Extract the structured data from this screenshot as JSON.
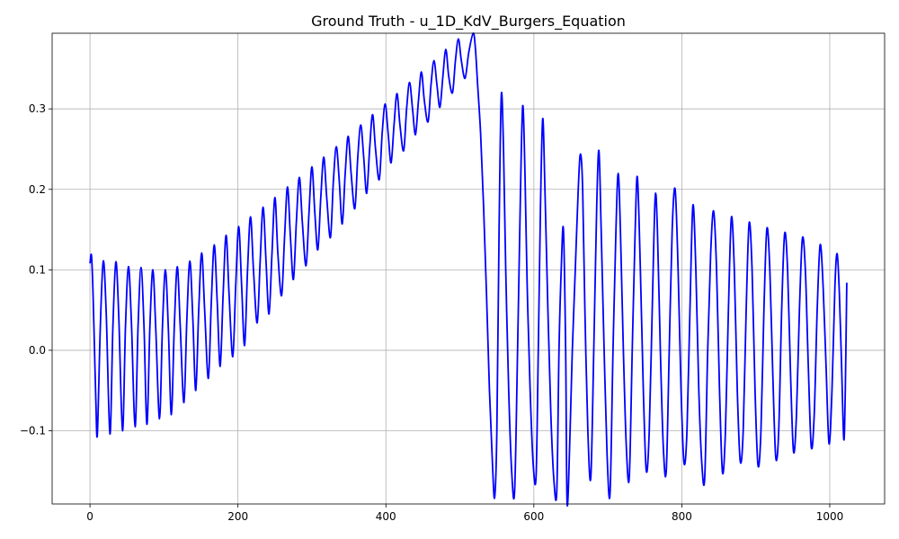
{
  "chart_data": {
    "type": "line",
    "title": "Ground Truth - u_1D_KdV_Burgers_Equation",
    "xlabel": "",
    "ylabel": "",
    "xlim": [
      -51.15,
      1074.15
    ],
    "ylim": [
      -0.191,
      0.394
    ],
    "grid": true,
    "xticks": [
      0,
      200,
      400,
      600,
      800,
      1000
    ],
    "yticks": [
      -0.1,
      0.0,
      0.1,
      0.2,
      0.3
    ],
    "xtick_labels": [
      "0",
      "200",
      "400",
      "600",
      "800",
      "1000"
    ],
    "ytick_labels": [
      "−0.1",
      "0.0",
      "0.1",
      "0.2",
      "0.3"
    ],
    "series": [
      {
        "name": "",
        "color": "#0000ff",
        "points": [
          [
            0,
            0.108
          ],
          [
            2,
            0.118
          ],
          [
            4,
            0.075
          ],
          [
            6,
            0.005
          ],
          [
            8,
            -0.065
          ],
          [
            10,
            -0.104
          ],
          [
            14,
            0.03
          ],
          [
            18,
            0.111
          ],
          [
            22,
            0.045
          ],
          [
            27,
            -0.104
          ],
          [
            31,
            0.03
          ],
          [
            35,
            0.11
          ],
          [
            39,
            0.04
          ],
          [
            44,
            -0.1
          ],
          [
            48,
            0.03
          ],
          [
            52,
            0.104
          ],
          [
            56,
            0.035
          ],
          [
            61,
            -0.095
          ],
          [
            65,
            0.03
          ],
          [
            69,
            0.103
          ],
          [
            73,
            0.03
          ],
          [
            77,
            -0.092
          ],
          [
            81,
            0.03
          ],
          [
            85,
            0.1
          ],
          [
            89,
            0.025
          ],
          [
            94,
            -0.085
          ],
          [
            98,
            0.03
          ],
          [
            102,
            0.1
          ],
          [
            106,
            0.025
          ],
          [
            110,
            -0.08
          ],
          [
            114,
            0.03
          ],
          [
            118,
            0.104
          ],
          [
            122,
            0.03
          ],
          [
            127,
            -0.065
          ],
          [
            131,
            0.04
          ],
          [
            135,
            0.111
          ],
          [
            139,
            0.04
          ],
          [
            143,
            -0.05
          ],
          [
            147,
            0.05
          ],
          [
            151,
            0.121
          ],
          [
            155,
            0.05
          ],
          [
            160,
            -0.035
          ],
          [
            164,
            0.06
          ],
          [
            168,
            0.131
          ],
          [
            172,
            0.06
          ],
          [
            176,
            -0.02
          ],
          [
            180,
            0.07
          ],
          [
            184,
            0.143
          ],
          [
            188,
            0.07
          ],
          [
            193,
            -0.008
          ],
          [
            197,
            0.08
          ],
          [
            201,
            0.154
          ],
          [
            205,
            0.08
          ],
          [
            209,
            0.006
          ],
          [
            213,
            0.1
          ],
          [
            217,
            0.166
          ],
          [
            221,
            0.1
          ],
          [
            226,
            0.034
          ],
          [
            230,
            0.11
          ],
          [
            234,
            0.178
          ],
          [
            238,
            0.11
          ],
          [
            242,
            0.045
          ],
          [
            246,
            0.12
          ],
          [
            250,
            0.19
          ],
          [
            254,
            0.12
          ],
          [
            259,
            0.068
          ],
          [
            263,
            0.14
          ],
          [
            267,
            0.203
          ],
          [
            271,
            0.14
          ],
          [
            275,
            0.088
          ],
          [
            279,
            0.16
          ],
          [
            283,
            0.215
          ],
          [
            287,
            0.16
          ],
          [
            292,
            0.105
          ],
          [
            296,
            0.17
          ],
          [
            300,
            0.228
          ],
          [
            304,
            0.17
          ],
          [
            308,
            0.125
          ],
          [
            312,
            0.19
          ],
          [
            316,
            0.24
          ],
          [
            320,
            0.19
          ],
          [
            325,
            0.14
          ],
          [
            329,
            0.21
          ],
          [
            333,
            0.253
          ],
          [
            337,
            0.21
          ],
          [
            341,
            0.157
          ],
          [
            345,
            0.22
          ],
          [
            349,
            0.266
          ],
          [
            353,
            0.22
          ],
          [
            358,
            0.176
          ],
          [
            362,
            0.24
          ],
          [
            366,
            0.28
          ],
          [
            370,
            0.24
          ],
          [
            374,
            0.195
          ],
          [
            378,
            0.25
          ],
          [
            382,
            0.293
          ],
          [
            386,
            0.25
          ],
          [
            391,
            0.212
          ],
          [
            395,
            0.27
          ],
          [
            399,
            0.306
          ],
          [
            403,
            0.27
          ],
          [
            407,
            0.233
          ],
          [
            411,
            0.28
          ],
          [
            415,
            0.319
          ],
          [
            419,
            0.28
          ],
          [
            424,
            0.248
          ],
          [
            428,
            0.3
          ],
          [
            432,
            0.333
          ],
          [
            436,
            0.3
          ],
          [
            440,
            0.268
          ],
          [
            444,
            0.31
          ],
          [
            448,
            0.346
          ],
          [
            452,
            0.31
          ],
          [
            457,
            0.284
          ],
          [
            461,
            0.33
          ],
          [
            465,
            0.36
          ],
          [
            469,
            0.33
          ],
          [
            473,
            0.302
          ],
          [
            477,
            0.34
          ],
          [
            481,
            0.374
          ],
          [
            485,
            0.34
          ],
          [
            490,
            0.32
          ],
          [
            494,
            0.36
          ],
          [
            498,
            0.387
          ],
          [
            502,
            0.36
          ],
          [
            507,
            0.338
          ],
          [
            512,
            0.37
          ],
          [
            518,
            0.394
          ],
          [
            521,
            0.375
          ],
          [
            524,
            0.33
          ],
          [
            528,
            0.27
          ],
          [
            532,
            0.18
          ],
          [
            536,
            0.07
          ],
          [
            540,
            -0.05
          ],
          [
            544,
            -0.14
          ],
          [
            547,
            -0.183
          ],
          [
            550,
            -0.1
          ],
          [
            553,
            0.15
          ],
          [
            556,
            0.317
          ],
          [
            559,
            0.25
          ],
          [
            562,
            0.1
          ],
          [
            566,
            -0.05
          ],
          [
            570,
            -0.15
          ],
          [
            574,
            -0.175
          ],
          [
            578,
            0.0
          ],
          [
            582,
            0.2
          ],
          [
            585,
            0.304
          ],
          [
            588,
            0.22
          ],
          [
            591,
            0.08
          ],
          [
            595,
            -0.05
          ],
          [
            599,
            -0.14
          ],
          [
            603,
            -0.157
          ],
          [
            606,
            0.0
          ],
          [
            609,
            0.18
          ],
          [
            612,
            0.288
          ],
          [
            615,
            0.2
          ],
          [
            619,
            0.05
          ],
          [
            623,
            -0.08
          ],
          [
            627,
            -0.16
          ],
          [
            631,
            -0.175
          ],
          [
            634,
            0.0
          ],
          [
            637,
            0.1
          ],
          [
            640,
            0.15
          ],
          [
            643,
            0.0
          ],
          [
            645,
            -0.191
          ],
          [
            649,
            -0.1
          ],
          [
            652,
            0.0
          ],
          [
            656,
            0.1
          ],
          [
            660,
            0.2
          ],
          [
            663,
            0.244
          ],
          [
            666,
            0.2
          ],
          [
            669,
            0.05
          ],
          [
            673,
            -0.1
          ],
          [
            677,
            -0.158
          ],
          [
            681,
            0.0
          ],
          [
            685,
            0.18
          ],
          [
            688,
            0.248
          ],
          [
            691,
            0.15
          ],
          [
            695,
            0.0
          ],
          [
            699,
            -0.13
          ],
          [
            703,
            -0.178
          ],
          [
            707,
            0.0
          ],
          [
            711,
            0.15
          ],
          [
            714,
            0.22
          ],
          [
            717,
            0.15
          ],
          [
            721,
            0.0
          ],
          [
            725,
            -0.12
          ],
          [
            729,
            -0.158
          ],
          [
            733,
            0.0
          ],
          [
            737,
            0.15
          ],
          [
            740,
            0.215
          ],
          [
            744,
            0.1
          ],
          [
            748,
            -0.05
          ],
          [
            752,
            -0.15
          ],
          [
            756,
            -0.1
          ],
          [
            760,
            0.05
          ],
          [
            764,
            0.19
          ],
          [
            767,
            0.15
          ],
          [
            771,
            0.0
          ],
          [
            775,
            -0.12
          ],
          [
            779,
            -0.15
          ],
          [
            783,
            0.0
          ],
          [
            787,
            0.15
          ],
          [
            791,
            0.2
          ],
          [
            795,
            0.1
          ],
          [
            799,
            -0.05
          ],
          [
            803,
            -0.14
          ],
          [
            807,
            -0.1
          ],
          [
            811,
            0.05
          ],
          [
            815,
            0.18
          ],
          [
            819,
            0.1
          ],
          [
            823,
            -0.05
          ],
          [
            827,
            -0.14
          ],
          [
            831,
            -0.158
          ],
          [
            835,
            0.0
          ],
          [
            839,
            0.12
          ],
          [
            843,
            0.173
          ],
          [
            847,
            0.1
          ],
          [
            851,
            -0.05
          ],
          [
            855,
            -0.152
          ],
          [
            859,
            -0.1
          ],
          [
            863,
            0.05
          ],
          [
            867,
            0.165
          ],
          [
            871,
            0.1
          ],
          [
            875,
            -0.05
          ],
          [
            879,
            -0.138
          ],
          [
            883,
            -0.1
          ],
          [
            887,
            0.05
          ],
          [
            891,
            0.158
          ],
          [
            895,
            0.1
          ],
          [
            899,
            -0.05
          ],
          [
            903,
            -0.143
          ],
          [
            907,
            -0.1
          ],
          [
            911,
            0.05
          ],
          [
            915,
            0.151
          ],
          [
            919,
            0.1
          ],
          [
            923,
            -0.03
          ],
          [
            927,
            -0.133
          ],
          [
            931,
            -0.1
          ],
          [
            935,
            0.05
          ],
          [
            939,
            0.145
          ],
          [
            943,
            0.1
          ],
          [
            947,
            -0.03
          ],
          [
            951,
            -0.126
          ],
          [
            955,
            -0.08
          ],
          [
            959,
            0.05
          ],
          [
            963,
            0.139
          ],
          [
            967,
            0.1
          ],
          [
            971,
            -0.02
          ],
          [
            975,
            -0.12
          ],
          [
            979,
            -0.08
          ],
          [
            983,
            0.05
          ],
          [
            987,
            0.131
          ],
          [
            991,
            0.08
          ],
          [
            995,
            -0.02
          ],
          [
            999,
            -0.116
          ],
          [
            1003,
            -0.05
          ],
          [
            1007,
            0.08
          ],
          [
            1010,
            0.12
          ],
          [
            1013,
            0.07
          ],
          [
            1016,
            -0.02
          ],
          [
            1019,
            -0.111
          ],
          [
            1021,
            -0.05
          ],
          [
            1023,
            0.084
          ]
        ]
      }
    ]
  }
}
